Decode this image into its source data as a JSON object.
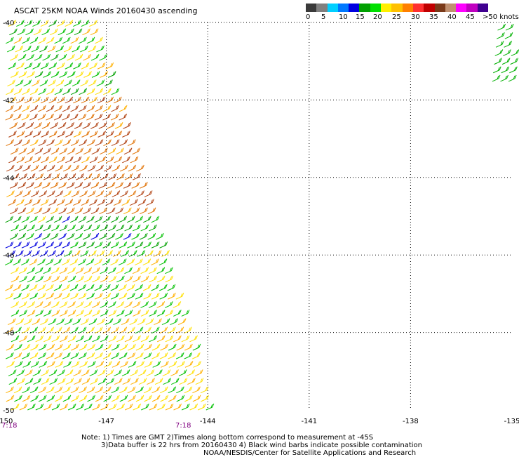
{
  "title": "ASCAT 25KM NOAA Winds 20160430 ascending",
  "scale": {
    "colors": [
      "#3a3a3a",
      "#808080",
      "#00cfff",
      "#0078ff",
      "#0000e0",
      "#00a000",
      "#00e000",
      "#ffef00",
      "#ffc000",
      "#ff8000",
      "#ff3030",
      "#c00000",
      "#7a3a1a",
      "#c09070",
      "#ff00ff",
      "#c000c0",
      "#400090"
    ],
    "labels": [
      "0",
      "5",
      "10",
      "15",
      "20",
      "25",
      "30",
      "35",
      "40",
      "45",
      ">50 knots"
    ]
  },
  "axes": {
    "lat_labels": [
      "-40",
      "-42",
      "-44",
      "-46",
      "-48",
      "-50"
    ],
    "lon_labels": [
      "-150",
      "-147",
      "-144",
      "-141",
      "-138",
      "-135"
    ]
  },
  "times": [
    "7:18",
    "7:18"
  ],
  "notes": [
    "Note: 1) Times are GMT 2)Times along bottom correspond to measurement at -45S",
    "3)Data buffer is 22 hrs from 20160430 4) Black wind barbs indicate possible contamination",
    "NOAA/NESDIS/Center for Satellite Applications and Research"
  ],
  "chart_data": {
    "type": "map",
    "title": "ASCAT 25KM NOAA Winds 20160430 ascending",
    "lon_range": [
      -150,
      -135
    ],
    "lat_range": [
      -50,
      -40
    ],
    "grid": true,
    "legend_placement": "top-right",
    "wind_units": "knots",
    "swath": {
      "description_regions": [
        {
          "lat_band": [
            -40,
            -42
          ],
          "speed_knots_approx": 20
        },
        {
          "lat_band": [
            -42,
            -45
          ],
          "speed_knots_approx": 35
        },
        {
          "lat_band": [
            -45,
            -46
          ],
          "speed_knots_approx": 15
        },
        {
          "lat_band": [
            -46,
            -50
          ],
          "speed_knots_approx": 22
        }
      ]
    }
  }
}
